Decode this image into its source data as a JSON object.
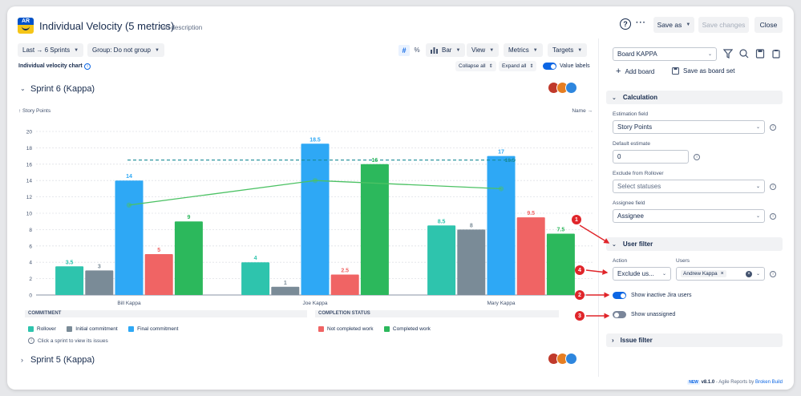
{
  "header": {
    "logo_text": "AR",
    "title": "Individual Velocity (5 metrics)",
    "add_description": "Add description",
    "help": "?",
    "more": "···",
    "save_as": "Save as",
    "save_changes": "Save changes",
    "close": "Close"
  },
  "toolbar": {
    "range": "Last → 6 Sprints",
    "group": "Group: Do not group",
    "hash": "#",
    "percent": "%",
    "chart_type": "Bar",
    "view": "View",
    "metrics": "Metrics",
    "targets": "Targets"
  },
  "chart_header": {
    "label": "Individual velocity chart",
    "collapse_all": "Collapse all",
    "expand_all": "Expand all",
    "value_labels": "Value labels"
  },
  "sprints": [
    {
      "name": "Sprint 6 (Kappa)",
      "expanded": true
    },
    {
      "name": "Sprint 5 (Kappa)",
      "expanded": false
    }
  ],
  "chart_data": {
    "type": "bar",
    "ylabel": "↑ Story Points",
    "xsort": "Name →",
    "ylim": [
      0,
      20
    ],
    "yticks": [
      0,
      2,
      4,
      6,
      8,
      10,
      12,
      14,
      16,
      18,
      20
    ],
    "categories": [
      "Bill Kappa",
      "Joe Kappa",
      "Mary Kappa"
    ],
    "series": [
      {
        "name": "Rollover",
        "color": "#2ec4ad",
        "values": [
          3.5,
          4,
          8.5
        ]
      },
      {
        "name": "Initial commitment",
        "color": "#7a8b97",
        "values": [
          3,
          1,
          8
        ]
      },
      {
        "name": "Final commitment",
        "color": "#2ea8f5",
        "values": [
          14,
          18.5,
          17
        ]
      },
      {
        "name": "Not completed work",
        "color": "#f06464",
        "values": [
          5,
          2.5,
          9.5
        ]
      },
      {
        "name": "Completed work",
        "color": "#2cb85c",
        "values": [
          9,
          16,
          7.5
        ]
      }
    ],
    "trend_line": {
      "color": "#4cc264",
      "values": [
        11,
        14,
        13
      ]
    },
    "target_line": {
      "color": "#178a96",
      "value": 16.5
    },
    "value_labels": [
      "3.5",
      "3",
      "14",
      "5",
      "9",
      "4",
      "1",
      "18.5",
      "2.5",
      "16",
      "8.5",
      "8",
      "17",
      "9.5",
      "7.5"
    ],
    "target_label": "16.5"
  },
  "legend": {
    "commitment_title": "COMMITMENT",
    "completion_title": "COMPLETION STATUS",
    "rollover": "Rollover",
    "initial": "Initial commitment",
    "final": "Final commitment",
    "not_completed": "Not completed work",
    "completed": "Completed work",
    "hint": "Click a sprint to view its issues"
  },
  "panel": {
    "board": "Board KAPPA",
    "add_board": "Add board",
    "save_board_set": "Save as board set",
    "calculation": "Calculation",
    "estimation_label": "Estimation field",
    "estimation_value": "Story Points",
    "default_estimate_label": "Default estimate",
    "default_estimate_value": "0",
    "exclude_label": "Exclude from Rollover",
    "exclude_placeholder": "Select statuses",
    "assignee_label": "Assignee field",
    "assignee_value": "Assignee",
    "user_filter": "User filter",
    "action_label": "Action",
    "action_value": "Exclude us...",
    "users_label": "Users",
    "user_chip": "Andrew Kappa",
    "show_inactive": "Show inactive Jira users",
    "show_unassigned": "Show unassigned",
    "issue_filter": "Issue filter"
  },
  "markers": [
    "1",
    "2",
    "3",
    "4"
  ],
  "footer": {
    "badge": "NEW",
    "version": "v8.1.0",
    "text": " - Agile Reports by ",
    "brand": "Broken Build"
  }
}
